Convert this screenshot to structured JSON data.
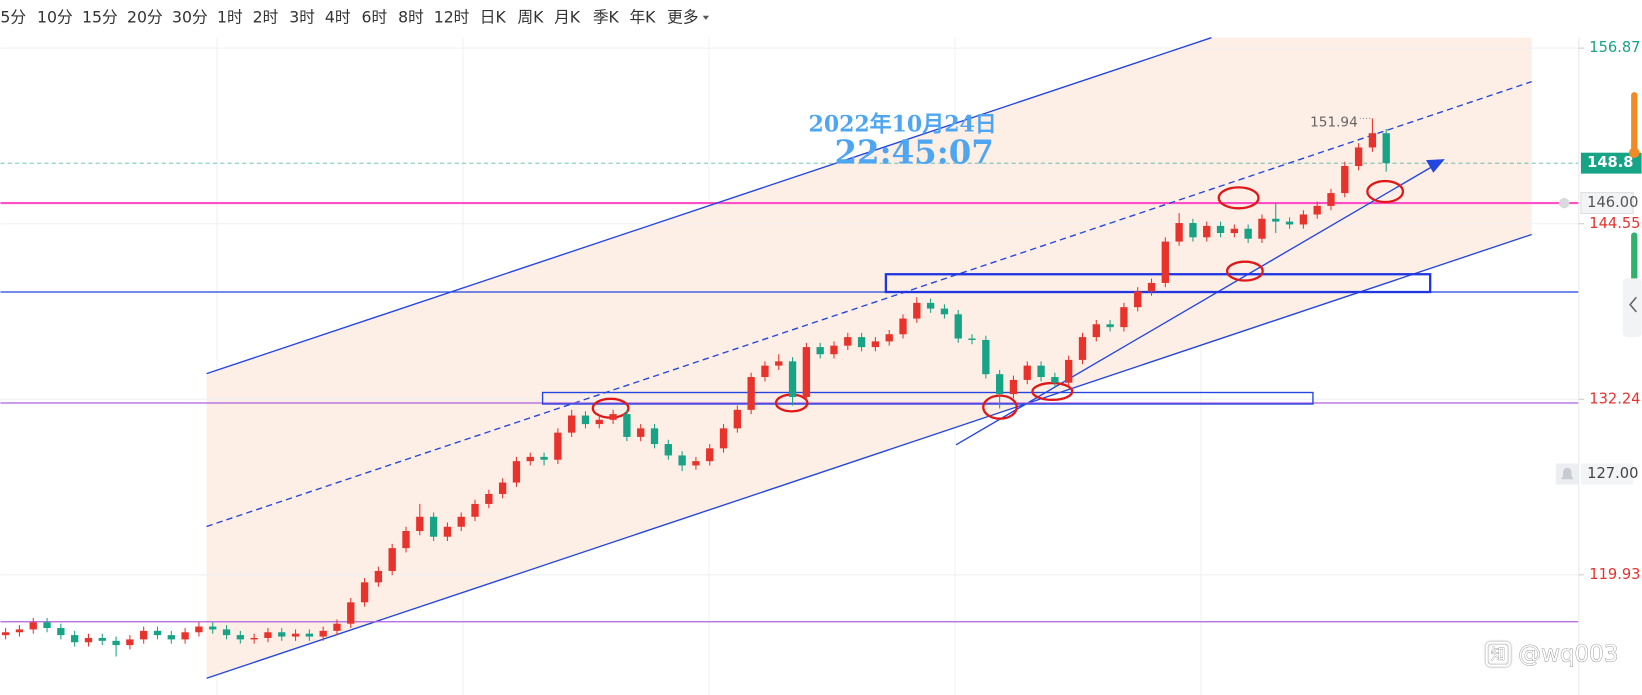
{
  "toolbar": {
    "items": [
      "5分",
      "10分",
      "15分",
      "20分",
      "30分",
      "1时",
      "2时",
      "3时",
      "4时",
      "6时",
      "8时",
      "12时",
      "日K",
      "周K",
      "月K",
      "季K",
      "年K",
      "更多"
    ],
    "active": 12
  },
  "chart_data": {
    "type": "candlestick",
    "open": [
      115.7,
      115.9,
      116.1,
      116.6,
      116.2,
      115.7,
      115.2,
      115.5,
      115.3,
      115.0,
      115.4,
      116.0,
      115.7,
      115.4,
      115.9,
      116.3,
      116.1,
      115.7,
      115.4,
      115.5,
      115.9,
      115.6,
      115.8,
      115.6,
      116.0,
      116.5,
      118.0,
      119.4,
      120.2,
      121.8,
      123.0,
      124.0,
      122.6,
      123.3,
      124.0,
      124.9,
      125.6,
      126.4,
      127.9,
      128.2,
      128.0,
      129.9,
      131.1,
      130.5,
      130.8,
      131.2,
      129.6,
      130.2,
      129.1,
      128.3,
      127.6,
      127.9,
      128.8,
      130.2,
      131.5,
      133.8,
      134.6,
      134.9,
      132.4,
      135.9,
      135.4,
      136.0,
      136.6,
      135.9,
      136.3,
      136.8,
      137.9,
      139.0,
      138.6,
      138.2,
      136.5,
      136.4,
      134.0,
      132.6,
      133.6,
      134.6,
      133.8,
      133.4,
      135.0,
      136.6,
      137.5,
      137.3,
      138.7,
      139.8,
      140.4,
      143.3,
      144.6,
      143.6,
      144.4,
      143.9,
      144.2,
      143.5,
      144.9,
      144.7,
      144.5,
      145.2,
      145.8,
      146.7,
      148.6,
      149.9,
      150.9
    ],
    "high": [
      116.2,
      116.4,
      116.9,
      116.9,
      116.5,
      116.0,
      115.8,
      115.8,
      115.6,
      115.7,
      116.3,
      116.3,
      116.0,
      116.2,
      116.6,
      116.6,
      116.4,
      116.0,
      115.8,
      116.2,
      116.2,
      116.1,
      116.1,
      116.3,
      116.8,
      118.3,
      119.7,
      120.5,
      122.1,
      123.3,
      124.9,
      124.3,
      123.6,
      124.3,
      125.2,
      125.9,
      126.7,
      128.2,
      128.5,
      128.5,
      130.2,
      131.5,
      131.4,
      131.1,
      131.5,
      131.5,
      130.5,
      130.5,
      129.4,
      128.6,
      128.2,
      129.1,
      130.5,
      131.8,
      134.1,
      134.9,
      135.4,
      135.2,
      136.2,
      136.2,
      136.3,
      136.9,
      136.9,
      136.6,
      137.1,
      138.2,
      139.4,
      139.3,
      138.9,
      138.5,
      136.8,
      136.7,
      134.3,
      133.9,
      134.9,
      134.9,
      134.1,
      135.3,
      136.9,
      137.8,
      137.8,
      139.0,
      140.1,
      140.7,
      143.6,
      145.3,
      144.9,
      144.7,
      144.7,
      144.5,
      144.5,
      145.2,
      146.0,
      145.0,
      145.5,
      146.1,
      147.0,
      148.9,
      150.2,
      151.94,
      151.2
    ],
    "low": [
      115.4,
      115.6,
      115.8,
      115.9,
      115.4,
      114.9,
      114.9,
      115.0,
      114.2,
      114.7,
      115.1,
      115.4,
      115.1,
      115.1,
      115.6,
      115.8,
      115.4,
      115.1,
      115.1,
      115.2,
      115.3,
      115.3,
      115.3,
      115.3,
      115.7,
      116.2,
      117.7,
      119.1,
      119.9,
      121.5,
      122.7,
      122.3,
      122.3,
      123.0,
      123.7,
      124.6,
      125.3,
      126.1,
      127.6,
      127.6,
      127.7,
      129.6,
      130.2,
      130.2,
      130.5,
      129.3,
      129.3,
      128.8,
      128.0,
      127.2,
      127.3,
      127.6,
      128.5,
      129.9,
      131.2,
      133.5,
      134.3,
      131.8,
      132.1,
      135.1,
      135.1,
      135.7,
      135.6,
      135.6,
      136.0,
      136.5,
      137.6,
      138.3,
      137.9,
      136.2,
      136.1,
      133.7,
      131.6,
      132.3,
      133.3,
      133.5,
      133.1,
      133.1,
      134.7,
      136.3,
      137.0,
      137.0,
      138.4,
      139.5,
      140.1,
      143.0,
      143.3,
      143.3,
      143.6,
      143.6,
      143.2,
      143.2,
      143.9,
      144.2,
      144.2,
      144.9,
      145.5,
      146.4,
      148.3,
      149.6,
      148.2
    ],
    "close": [
      115.9,
      116.1,
      116.6,
      116.2,
      115.7,
      115.2,
      115.5,
      115.3,
      115.0,
      115.4,
      116.0,
      115.7,
      115.4,
      115.9,
      116.3,
      116.1,
      115.7,
      115.4,
      115.5,
      115.9,
      115.6,
      115.8,
      115.6,
      116.0,
      116.5,
      118.0,
      119.4,
      120.2,
      121.8,
      123.0,
      124.0,
      122.6,
      123.3,
      124.0,
      124.9,
      125.6,
      126.4,
      127.9,
      128.2,
      128.0,
      129.9,
      131.1,
      130.5,
      130.8,
      131.2,
      129.6,
      130.2,
      129.1,
      128.3,
      127.6,
      127.9,
      128.8,
      130.2,
      131.5,
      133.8,
      134.6,
      134.9,
      132.4,
      135.9,
      135.4,
      136.0,
      136.6,
      135.9,
      136.3,
      136.8,
      137.9,
      139.0,
      138.6,
      138.2,
      136.5,
      136.4,
      134.0,
      132.6,
      133.6,
      134.6,
      133.8,
      133.4,
      135.0,
      136.6,
      137.5,
      137.3,
      138.7,
      139.8,
      140.4,
      143.3,
      144.6,
      143.6,
      144.4,
      143.9,
      144.2,
      143.5,
      144.9,
      144.7,
      144.5,
      145.2,
      145.8,
      146.7,
      148.6,
      149.9,
      150.9,
      148.8
    ],
    "up_color": "#e8322c",
    "down_color": "#16a386",
    "ylim": [
      111.5,
      157.6
    ],
    "yticks": [
      156.87,
      144.55,
      132.24,
      119.93
    ],
    "ytick_colors": [
      "#16a386",
      "#e8322c",
      "#e8322c",
      "#e8322c"
    ],
    "current_price": 148.8,
    "current_color": "#16a386",
    "price_lines": [
      {
        "value": 146,
        "label": "146.00"
      }
    ],
    "alerts": [
      {
        "value": 127,
        "label": "127.00"
      }
    ],
    "date": "2022年10月24日",
    "time": "22:45:07",
    "grid": true
  },
  "watermark": "@wq003"
}
